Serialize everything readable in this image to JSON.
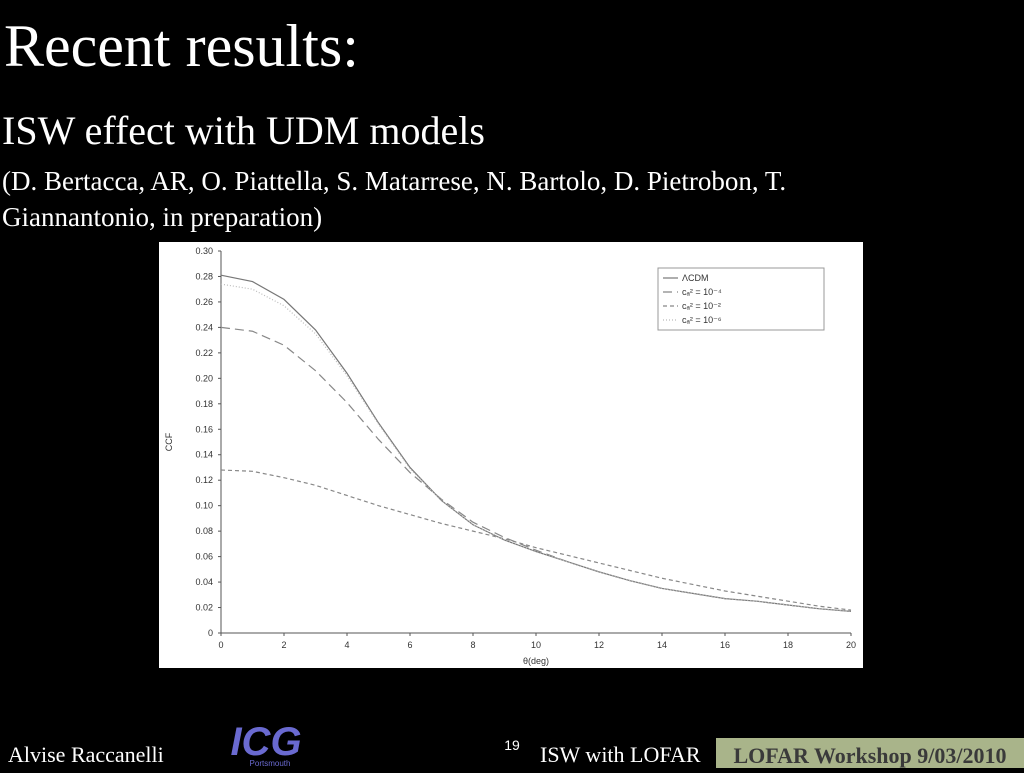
{
  "slide": {
    "title": "Recent results:",
    "heading": "ISW effect with UDM models",
    "authors": [
      "(D. Bertacca, AR, O. Piattella, S. Matarrese, N. Bartolo, D. Pietrobon, T.",
      "Giannantonio, in preparation)"
    ],
    "footer": {
      "author": "Alvise Raccanelli",
      "logo": "ICG",
      "logo_sub": "Portsmouth",
      "page": "19",
      "talk": "ISW with LOFAR",
      "event": "LOFAR Workshop 9/03/2010"
    }
  },
  "chart_data": {
    "type": "line",
    "x_label": "θ(deg)",
    "y_label": "CCF",
    "x": [
      0,
      1,
      2,
      3,
      4,
      5,
      6,
      7,
      8,
      9,
      10,
      11,
      12,
      13,
      14,
      15,
      16,
      17,
      18,
      19,
      20
    ],
    "series": [
      {
        "name": "ΛCDM",
        "color": "#777777",
        "dash": "none",
        "values": [
          0.281,
          0.276,
          0.262,
          0.238,
          0.204,
          0.165,
          0.13,
          0.104,
          0.085,
          0.073,
          0.064,
          0.056,
          0.048,
          0.041,
          0.035,
          0.031,
          0.027,
          0.025,
          0.022,
          0.019,
          0.017
        ]
      },
      {
        "name": "cₐ² = 10⁻⁴",
        "color": "#888888",
        "dash": "9 5",
        "values": [
          0.24,
          0.237,
          0.226,
          0.206,
          0.181,
          0.152,
          0.126,
          0.105,
          0.087,
          0.075,
          0.065,
          0.056,
          0.048,
          0.041,
          0.035,
          0.031,
          0.027,
          0.025,
          0.022,
          0.019,
          0.017
        ]
      },
      {
        "name": "cₐ² = 10⁻²",
        "color": "#888888",
        "dash": "4 3",
        "values": [
          0.128,
          0.127,
          0.122,
          0.116,
          0.108,
          0.1,
          0.093,
          0.086,
          0.08,
          0.074,
          0.067,
          0.061,
          0.055,
          0.049,
          0.043,
          0.038,
          0.033,
          0.029,
          0.025,
          0.021,
          0.018
        ]
      },
      {
        "name": "cₐ² = 10⁻⁶",
        "color": "#bbbbbb",
        "dash": "1 2",
        "values": [
          0.274,
          0.27,
          0.257,
          0.235,
          0.202,
          0.164,
          0.129,
          0.104,
          0.085,
          0.073,
          0.064,
          0.056,
          0.048,
          0.041,
          0.035,
          0.031,
          0.027,
          0.025,
          0.022,
          0.019,
          0.017
        ]
      }
    ],
    "xlim": [
      0,
      20
    ],
    "xticks": [
      0,
      2,
      4,
      6,
      8,
      10,
      12,
      14,
      16,
      18,
      20
    ],
    "ylim": [
      0,
      0.3
    ],
    "yticks": [
      0,
      0.02,
      0.04,
      0.06,
      0.08,
      {
        "value": 0.1,
        "label": "0.10"
      },
      0.12,
      0.14,
      0.16,
      0.18,
      {
        "value": 0.2,
        "label": "0.20"
      },
      0.22,
      0.24,
      0.26,
      0.28,
      {
        "value": 0.3,
        "label": "0.30"
      }
    ],
    "legend": "upper right",
    "grid": false
  }
}
